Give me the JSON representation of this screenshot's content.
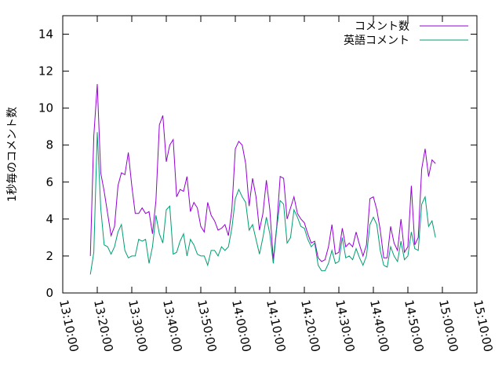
{
  "chart_data": {
    "type": "line",
    "title": "",
    "xlabel": "",
    "ylabel": "1秒毎のコメント数",
    "xlim": [
      "13:10:00",
      "15:10:00"
    ],
    "ylim": [
      0,
      15
    ],
    "x_ticks": [
      "13:10:00",
      "13:20:00",
      "13:30:00",
      "13:40:00",
      "13:50:00",
      "14:00:00",
      "14:10:00",
      "14:20:00",
      "14:30:00",
      "14:40:00",
      "14:50:00",
      "15:00:00",
      "15:10:00"
    ],
    "y_ticks": [
      "0",
      "2",
      "4",
      "6",
      "8",
      "10",
      "12",
      "14"
    ],
    "grid": false,
    "legend_position": "top-right",
    "series": [
      {
        "name": "コメント数",
        "color": "#9400d3",
        "points": [
          [
            "13:18:00",
            2.0
          ],
          [
            "13:19:00",
            8.5
          ],
          [
            "13:20:00",
            11.3
          ],
          [
            "13:21:00",
            6.5
          ],
          [
            "13:22:00",
            5.5
          ],
          [
            "13:23:00",
            4.3
          ],
          [
            "13:24:00",
            3.1
          ],
          [
            "13:25:00",
            3.6
          ],
          [
            "13:26:00",
            5.8
          ],
          [
            "13:27:00",
            6.5
          ],
          [
            "13:28:00",
            6.4
          ],
          [
            "13:29:00",
            7.6
          ],
          [
            "13:30:00",
            5.8
          ],
          [
            "13:31:00",
            4.3
          ],
          [
            "13:32:00",
            4.3
          ],
          [
            "13:33:00",
            4.6
          ],
          [
            "13:34:00",
            4.3
          ],
          [
            "13:35:00",
            4.4
          ],
          [
            "13:36:00",
            3.2
          ],
          [
            "13:37:00",
            5.0
          ],
          [
            "13:38:00",
            9.1
          ],
          [
            "13:39:00",
            9.6
          ],
          [
            "13:40:00",
            7.1
          ],
          [
            "13:41:00",
            8.0
          ],
          [
            "13:42:00",
            8.3
          ],
          [
            "13:43:00",
            5.2
          ],
          [
            "13:44:00",
            5.6
          ],
          [
            "13:45:00",
            5.5
          ],
          [
            "13:46:00",
            6.3
          ],
          [
            "13:47:00",
            4.4
          ],
          [
            "13:48:00",
            4.9
          ],
          [
            "13:49:00",
            4.6
          ],
          [
            "13:50:00",
            3.6
          ],
          [
            "13:51:00",
            3.3
          ],
          [
            "13:52:00",
            4.9
          ],
          [
            "13:53:00",
            4.2
          ],
          [
            "13:54:00",
            3.9
          ],
          [
            "13:55:00",
            3.4
          ],
          [
            "13:56:00",
            3.5
          ],
          [
            "13:57:00",
            3.7
          ],
          [
            "13:58:00",
            3.1
          ],
          [
            "13:59:00",
            4.5
          ],
          [
            "14:00:00",
            7.8
          ],
          [
            "14:01:00",
            8.2
          ],
          [
            "14:02:00",
            8.0
          ],
          [
            "14:03:00",
            7.0
          ],
          [
            "14:04:00",
            4.7
          ],
          [
            "14:05:00",
            6.2
          ],
          [
            "14:06:00",
            5.2
          ],
          [
            "14:07:00",
            3.4
          ],
          [
            "14:08:00",
            4.3
          ],
          [
            "14:09:00",
            6.1
          ],
          [
            "14:10:00",
            4.5
          ],
          [
            "14:11:00",
            1.8
          ],
          [
            "14:12:00",
            3.6
          ],
          [
            "14:13:00",
            6.3
          ],
          [
            "14:14:00",
            6.2
          ],
          [
            "14:15:00",
            4.0
          ],
          [
            "14:16:00",
            4.6
          ],
          [
            "14:17:00",
            5.2
          ],
          [
            "14:18:00",
            4.3
          ],
          [
            "14:19:00",
            4.0
          ],
          [
            "14:20:00",
            3.8
          ],
          [
            "14:21:00",
            3.2
          ],
          [
            "14:22:00",
            2.7
          ],
          [
            "14:23:00",
            2.8
          ],
          [
            "14:24:00",
            1.9
          ],
          [
            "14:25:00",
            1.7
          ],
          [
            "14:26:00",
            1.8
          ],
          [
            "14:27:00",
            2.5
          ],
          [
            "14:28:00",
            3.7
          ],
          [
            "14:29:00",
            2.1
          ],
          [
            "14:30:00",
            2.2
          ],
          [
            "14:31:00",
            3.5
          ],
          [
            "14:32:00",
            2.5
          ],
          [
            "14:33:00",
            2.7
          ],
          [
            "14:34:00",
            2.5
          ],
          [
            "14:35:00",
            3.3
          ],
          [
            "14:36:00",
            2.6
          ],
          [
            "14:37:00",
            2.0
          ],
          [
            "14:38:00",
            2.6
          ],
          [
            "14:39:00",
            5.1
          ],
          [
            "14:40:00",
            5.2
          ],
          [
            "14:41:00",
            4.5
          ],
          [
            "14:42:00",
            3.4
          ],
          [
            "14:43:00",
            1.9
          ],
          [
            "14:44:00",
            1.9
          ],
          [
            "14:45:00",
            3.6
          ],
          [
            "14:46:00",
            2.7
          ],
          [
            "14:47:00",
            2.3
          ],
          [
            "14:48:00",
            4.0
          ],
          [
            "14:49:00",
            2.2
          ],
          [
            "14:50:00",
            2.5
          ],
          [
            "14:51:00",
            5.8
          ],
          [
            "14:52:00",
            2.6
          ],
          [
            "14:53:00",
            3.0
          ],
          [
            "14:54:00",
            6.7
          ],
          [
            "14:55:00",
            7.8
          ],
          [
            "14:56:00",
            6.3
          ],
          [
            "14:57:00",
            7.2
          ],
          [
            "14:58:00",
            7.0
          ]
        ]
      },
      {
        "name": "英語コメント",
        "color": "#009e73",
        "points": [
          [
            "13:18:00",
            1.0
          ],
          [
            "13:19:00",
            2.2
          ],
          [
            "13:20:00",
            8.7
          ],
          [
            "13:21:00",
            4.6
          ],
          [
            "13:22:00",
            2.6
          ],
          [
            "13:23:00",
            2.5
          ],
          [
            "13:24:00",
            2.1
          ],
          [
            "13:25:00",
            2.5
          ],
          [
            "13:26:00",
            3.3
          ],
          [
            "13:27:00",
            3.7
          ],
          [
            "13:28:00",
            2.3
          ],
          [
            "13:29:00",
            1.9
          ],
          [
            "13:30:00",
            2.0
          ],
          [
            "13:31:00",
            2.0
          ],
          [
            "13:32:00",
            2.9
          ],
          [
            "13:33:00",
            2.8
          ],
          [
            "13:34:00",
            2.9
          ],
          [
            "13:35:00",
            1.6
          ],
          [
            "13:36:00",
            2.5
          ],
          [
            "13:37:00",
            4.2
          ],
          [
            "13:38:00",
            3.2
          ],
          [
            "13:39:00",
            2.7
          ],
          [
            "13:40:00",
            4.5
          ],
          [
            "13:41:00",
            4.7
          ],
          [
            "13:42:00",
            2.1
          ],
          [
            "13:43:00",
            2.2
          ],
          [
            "13:44:00",
            2.8
          ],
          [
            "13:45:00",
            3.2
          ],
          [
            "13:46:00",
            2.0
          ],
          [
            "13:47:00",
            2.9
          ],
          [
            "13:48:00",
            2.6
          ],
          [
            "13:49:00",
            2.1
          ],
          [
            "13:50:00",
            2.0
          ],
          [
            "13:51:00",
            2.0
          ],
          [
            "13:52:00",
            1.5
          ],
          [
            "13:53:00",
            2.3
          ],
          [
            "13:54:00",
            2.3
          ],
          [
            "13:55:00",
            2.0
          ],
          [
            "13:56:00",
            2.5
          ],
          [
            "13:57:00",
            2.3
          ],
          [
            "13:58:00",
            2.5
          ],
          [
            "13:59:00",
            3.5
          ],
          [
            "14:00:00",
            5.1
          ],
          [
            "14:01:00",
            5.6
          ],
          [
            "14:02:00",
            5.2
          ],
          [
            "14:03:00",
            4.9
          ],
          [
            "14:04:00",
            3.4
          ],
          [
            "14:05:00",
            3.7
          ],
          [
            "14:06:00",
            2.9
          ],
          [
            "14:07:00",
            2.1
          ],
          [
            "14:08:00",
            3.0
          ],
          [
            "14:09:00",
            4.1
          ],
          [
            "14:10:00",
            3.2
          ],
          [
            "14:11:00",
            1.6
          ],
          [
            "14:12:00",
            3.5
          ],
          [
            "14:13:00",
            5.0
          ],
          [
            "14:14:00",
            4.8
          ],
          [
            "14:15:00",
            2.7
          ],
          [
            "14:16:00",
            3.0
          ],
          [
            "14:17:00",
            4.5
          ],
          [
            "14:18:00",
            4.1
          ],
          [
            "14:19:00",
            3.6
          ],
          [
            "14:20:00",
            3.5
          ],
          [
            "14:21:00",
            2.9
          ],
          [
            "14:22:00",
            2.5
          ],
          [
            "14:23:00",
            2.7
          ],
          [
            "14:24:00",
            1.5
          ],
          [
            "14:25:00",
            1.2
          ],
          [
            "14:26:00",
            1.2
          ],
          [
            "14:27:00",
            1.6
          ],
          [
            "14:28:00",
            2.3
          ],
          [
            "14:29:00",
            1.6
          ],
          [
            "14:30:00",
            1.7
          ],
          [
            "14:31:00",
            3.0
          ],
          [
            "14:32:00",
            1.9
          ],
          [
            "14:33:00",
            2.0
          ],
          [
            "14:34:00",
            1.8
          ],
          [
            "14:35:00",
            2.4
          ],
          [
            "14:36:00",
            1.9
          ],
          [
            "14:37:00",
            1.5
          ],
          [
            "14:38:00",
            2.0
          ],
          [
            "14:39:00",
            3.7
          ],
          [
            "14:40:00",
            4.1
          ],
          [
            "14:41:00",
            3.7
          ],
          [
            "14:42:00",
            2.3
          ],
          [
            "14:43:00",
            1.5
          ],
          [
            "14:44:00",
            1.4
          ],
          [
            "14:45:00",
            2.5
          ],
          [
            "14:46:00",
            2.0
          ],
          [
            "14:47:00",
            1.7
          ],
          [
            "14:48:00",
            2.8
          ],
          [
            "14:49:00",
            1.8
          ],
          [
            "14:50:00",
            2.0
          ],
          [
            "14:51:00",
            3.3
          ],
          [
            "14:52:00",
            2.4
          ],
          [
            "14:53:00",
            2.3
          ],
          [
            "14:54:00",
            4.8
          ],
          [
            "14:55:00",
            5.2
          ],
          [
            "14:56:00",
            3.6
          ],
          [
            "14:57:00",
            3.9
          ],
          [
            "14:58:00",
            3.0
          ]
        ]
      }
    ]
  }
}
